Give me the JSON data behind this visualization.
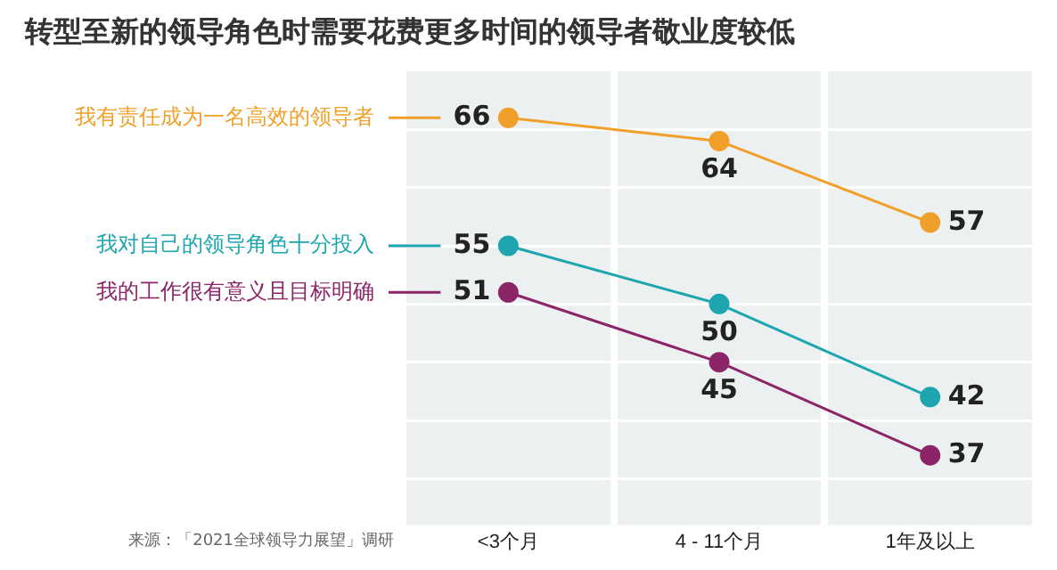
{
  "chart_data": {
    "type": "line",
    "title": "转型至新的领导角色时需要花费更多时间的领导者敬业度较低",
    "categories": [
      "<3个月",
      "4 - 11个月",
      "1年及以上"
    ],
    "series": [
      {
        "name": "我有责任成为一名高效的领导者",
        "color": "#f0a02a",
        "values": [
          66,
          64,
          57
        ]
      },
      {
        "name": "我对自己的领导角色十分投入",
        "color": "#1ea6b0",
        "values": [
          55,
          50,
          42
        ]
      },
      {
        "name": "我的工作很有意义且目标明确",
        "color": "#8c2468",
        "values": [
          51,
          45,
          37
        ]
      }
    ],
    "ylim": [
      31,
      70
    ],
    "yticks": [
      {
        "value": 35,
        "label": null
      },
      {
        "value": 40,
        "label": null
      },
      {
        "value": 45,
        "label": null
      },
      {
        "value": 50,
        "label": null
      },
      {
        "value": 55,
        "label": null
      },
      {
        "value": 60,
        "label": null
      },
      {
        "value": 65,
        "label": null
      }
    ],
    "tick_labels": "x",
    "grid": true,
    "legend": "left",
    "marker": "circle",
    "line_style": "solid",
    "data_labels": true,
    "annotations": [
      "来源：「2021全球领导力展望」调研"
    ]
  }
}
